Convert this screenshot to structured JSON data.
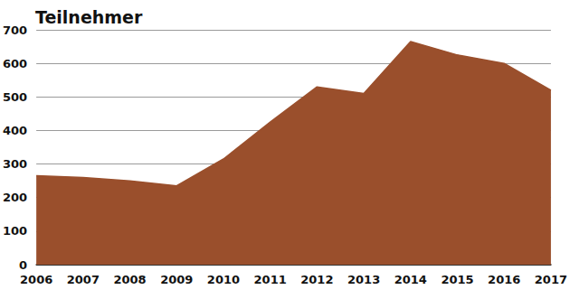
{
  "chart_data": {
    "type": "area",
    "title": "Teilnehmer",
    "categories": [
      "2006",
      "2007",
      "2008",
      "2009",
      "2010",
      "2011",
      "2012",
      "2013",
      "2014",
      "2015",
      "2016",
      "2017"
    ],
    "values": [
      265,
      260,
      250,
      235,
      315,
      425,
      530,
      510,
      665,
      625,
      600,
      520
    ],
    "color": "#9a4f2c",
    "ylim": [
      0,
      700
    ],
    "yticks": [
      0,
      100,
      200,
      300,
      400,
      500,
      600,
      700
    ],
    "grid": true
  }
}
